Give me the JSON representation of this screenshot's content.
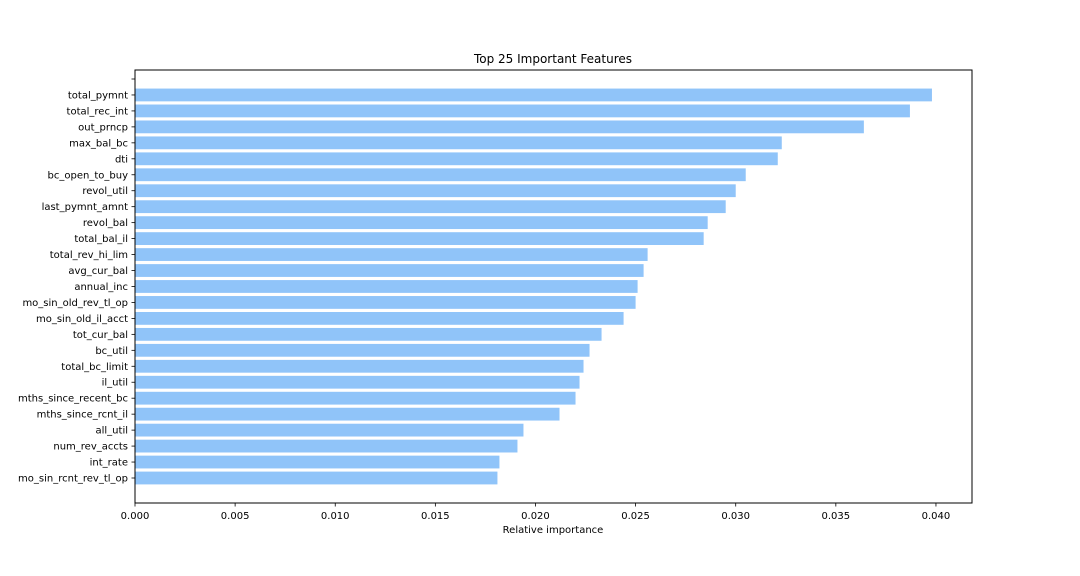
{
  "chart_data": {
    "type": "bar",
    "orientation": "horizontal",
    "title": "Top 25 Important Features",
    "xlabel": "Relative importance",
    "ylabel": "",
    "xlim": [
      0,
      0.0418
    ],
    "xticks": [
      "0.000",
      "0.005",
      "0.010",
      "0.015",
      "0.020",
      "0.025",
      "0.030",
      "0.035",
      "0.040"
    ],
    "grid": false,
    "legend": "none",
    "bar_color": "#90c4f9",
    "categories": [
      "mo_sin_rcnt_rev_tl_op",
      "int_rate",
      "num_rev_accts",
      "all_util",
      "mths_since_rcnt_il",
      "mths_since_recent_bc",
      "il_util",
      "total_bc_limit",
      "bc_util",
      "tot_cur_bal",
      "mo_sin_old_il_acct",
      "mo_sin_old_rev_tl_op",
      "annual_inc",
      "avg_cur_bal",
      "total_rev_hi_lim",
      "total_bal_il",
      "revol_bal",
      "last_pymnt_amnt",
      "revol_util",
      "bc_open_to_buy",
      "dti",
      "max_bal_bc",
      "out_prncp",
      "total_rec_int",
      "total_pymnt"
    ],
    "values": [
      0.0181,
      0.0182,
      0.0191,
      0.0194,
      0.0212,
      0.022,
      0.0222,
      0.0224,
      0.0227,
      0.0233,
      0.0244,
      0.025,
      0.0251,
      0.0254,
      0.0256,
      0.0284,
      0.0286,
      0.0295,
      0.03,
      0.0305,
      0.0321,
      0.0323,
      0.0364,
      0.0387,
      0.0398
    ]
  }
}
